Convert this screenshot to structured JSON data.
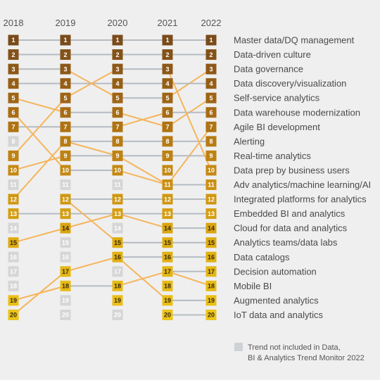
{
  "chart_data": {
    "type": "bump",
    "years": [
      "2018",
      "2019",
      "2020",
      "2021",
      "2022"
    ],
    "trends": [
      {
        "label": "Master data/DQ management",
        "ranks": [
          1,
          1,
          1,
          1,
          1
        ]
      },
      {
        "label": "Data-driven culture",
        "ranks": [
          2,
          2,
          2,
          2,
          2
        ]
      },
      {
        "label": "Data governance",
        "ranks": [
          3,
          3,
          5,
          5,
          3
        ]
      },
      {
        "label": "Data discovery/visualization",
        "ranks": [
          4,
          4,
          4,
          4,
          4
        ]
      },
      {
        "label": "Self-service analytics",
        "ranks": [
          5,
          6,
          6,
          7,
          5
        ]
      },
      {
        "label": "Data warehouse modernization",
        "ranks": [
          7,
          7,
          7,
          6,
          6
        ]
      },
      {
        "label": "Agile BI development",
        "ranks": [
          6,
          10,
          10,
          11,
          7
        ]
      },
      {
        "label": "Alerting",
        "ranks": [
          null,
          8,
          8,
          8,
          8
        ]
      },
      {
        "label": "Real-time analytics",
        "ranks": [
          10,
          9,
          9,
          9,
          9
        ]
      },
      {
        "label": "Data prep by business users",
        "ranks": [
          9,
          5,
          3,
          3,
          10
        ]
      },
      {
        "label": "Adv analytics/machine learning/AI",
        "ranks": [
          12,
          8,
          9,
          11,
          11
        ]
      },
      {
        "label": "Integrated platforms for analytics",
        "ranks": [
          null,
          12,
          12,
          12,
          12
        ]
      },
      {
        "label": "Embedded BI and analytics",
        "ranks": [
          13,
          13,
          13,
          13,
          13
        ]
      },
      {
        "label": "Cloud for data and analytics",
        "ranks": [
          15,
          14,
          13,
          14,
          14
        ]
      },
      {
        "label": "Analytics teams/data labs",
        "ranks": [
          null,
          12,
          15,
          15,
          15
        ]
      },
      {
        "label": "Data catalogs",
        "ranks": [
          null,
          null,
          16,
          16,
          16
        ]
      },
      {
        "label": "Decision automation",
        "ranks": [
          null,
          null,
          null,
          17,
          17
        ]
      },
      {
        "label": "Mobile BI",
        "ranks": [
          19,
          18,
          18,
          17,
          18
        ]
      },
      {
        "label": "Augmented analytics",
        "ranks": [
          20,
          17,
          16,
          19,
          19
        ]
      },
      {
        "label": "IoT data and analytics",
        "ranks": [
          null,
          null,
          null,
          20,
          20
        ]
      }
    ],
    "grey_ranks": {
      "2018": [
        8,
        11,
        14,
        16,
        17,
        18
      ],
      "2019": [
        11,
        15,
        16,
        19,
        20
      ],
      "2020": [
        11,
        14,
        17,
        20
      ],
      "2021": [],
      "2022": []
    },
    "colors": {
      "background": "#efefef",
      "line_orange": "#f5b55c",
      "line_grey": "#b5bcc2",
      "legend_box": "#cfd2d5",
      "grey_box": "#d6d6d6",
      "rank_gradient": [
        "#7a4b1a",
        "#a66a14",
        "#c98d12",
        "#dfae10",
        "#ecc418"
      ]
    },
    "legend": {
      "text_line1": "Trend not included in Data,",
      "text_line2": "BI & Analytics Trend Monitor 2022"
    }
  }
}
